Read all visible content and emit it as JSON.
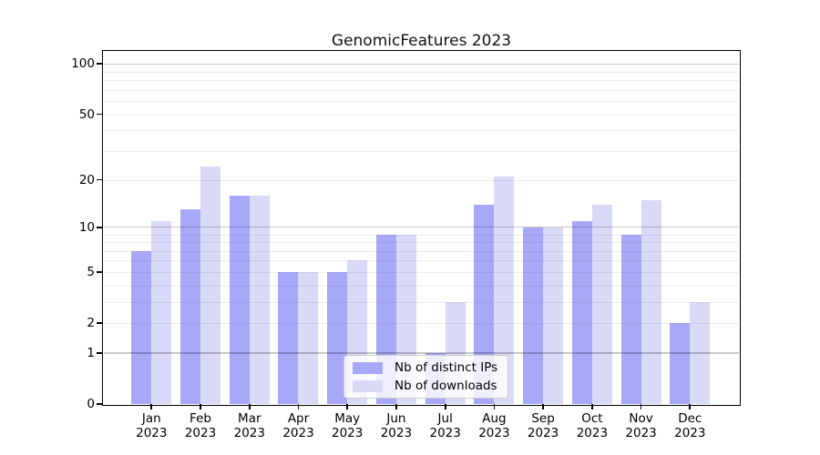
{
  "chart_data": {
    "type": "bar",
    "title": "GenomicFeatures 2023",
    "categories": [
      "Jan 2023",
      "Feb 2023",
      "Mar 2023",
      "Apr 2023",
      "May 2023",
      "Jun 2023",
      "Jul 2023",
      "Aug 2023",
      "Sep 2023",
      "Oct 2023",
      "Nov 2023",
      "Dec 2023"
    ],
    "series": [
      {
        "name": "Nb of distinct IPs",
        "color": "#a8a8f8",
        "values": [
          7,
          13,
          16,
          5,
          5,
          9,
          1,
          14,
          10,
          11,
          9,
          2
        ]
      },
      {
        "name": "Nb of downloads",
        "color": "#d9d9f8",
        "values": [
          11,
          24,
          16,
          5,
          6,
          9,
          3,
          21,
          10,
          14,
          15,
          3
        ]
      }
    ],
    "xlabel": "",
    "ylabel": "",
    "y_axis": {
      "scale": "log1p",
      "ylim": [
        0,
        118
      ],
      "tick_labels": [
        0,
        1,
        2,
        5,
        10,
        20,
        50,
        100
      ],
      "grid_major": [
        1,
        10,
        100
      ],
      "grid_minor": [
        2,
        3,
        4,
        5,
        6,
        7,
        8,
        9,
        20,
        30,
        40,
        50,
        60,
        70,
        80,
        90
      ]
    },
    "grid": "horizontal",
    "legend_position": "lower center inside plot"
  }
}
